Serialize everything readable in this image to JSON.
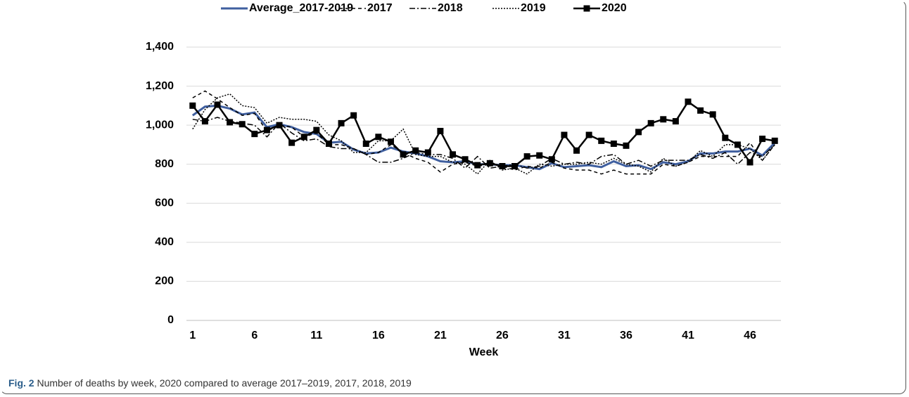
{
  "chart_data": {
    "type": "line",
    "x": [
      1,
      2,
      3,
      4,
      5,
      6,
      7,
      8,
      9,
      10,
      11,
      12,
      13,
      14,
      15,
      16,
      17,
      18,
      19,
      20,
      21,
      22,
      23,
      24,
      25,
      26,
      27,
      28,
      29,
      30,
      31,
      32,
      33,
      34,
      35,
      36,
      37,
      38,
      39,
      40,
      41,
      42,
      43,
      44,
      45,
      46,
      47,
      48
    ],
    "xlim": [
      0.5,
      48.5
    ],
    "xticks": [
      1,
      6,
      11,
      16,
      21,
      26,
      31,
      36,
      41,
      46
    ],
    "xlabel": "Week",
    "ylim": [
      0,
      1400
    ],
    "yticks": [
      0,
      200,
      400,
      600,
      800,
      {
        "value": 1000,
        "label": "1,000"
      },
      {
        "value": 1200,
        "label": "1,200"
      },
      {
        "value": 1400,
        "label": "1,400"
      }
    ],
    "grid": true,
    "legend": "top",
    "series": [
      {
        "name": "Average_2017-2019",
        "color": "#3f5f9f",
        "style": "solid",
        "values": [
          1050,
          1095,
          1100,
          1085,
          1055,
          1065,
          990,
          1005,
          990,
          965,
          955,
          910,
          915,
          875,
          855,
          860,
          885,
          865,
          855,
          840,
          815,
          810,
          815,
          800,
          800,
          795,
          795,
          785,
          775,
          805,
          785,
          790,
          795,
          785,
          815,
          790,
          795,
          775,
          810,
          800,
          815,
          855,
          855,
          865,
          865,
          880,
          845,
          910
        ]
      },
      {
        "name": "2017",
        "color": "#000000",
        "style": "dashed",
        "values": [
          1140,
          1175,
          1135,
          1090,
          1050,
          1060,
          970,
          1000,
          990,
          940,
          960,
          900,
          900,
          880,
          850,
          860,
          900,
          860,
          830,
          810,
          760,
          800,
          810,
          790,
          800,
          790,
          770,
          790,
          780,
          810,
          780,
          770,
          770,
          750,
          770,
          750,
          750,
          750,
          800,
          790,
          810,
          840,
          840,
          840,
          840,
          910,
          820,
          900
        ]
      },
      {
        "name": "2018",
        "color": "#000000",
        "style": "dashdot",
        "values": [
          1030,
          1020,
          1040,
          1020,
          1010,
          1000,
          940,
          1010,
          960,
          920,
          930,
          890,
          880,
          880,
          850,
          810,
          810,
          830,
          860,
          850,
          850,
          830,
          780,
          840,
          780,
          790,
          800,
          780,
          790,
          830,
          800,
          810,
          800,
          840,
          850,
          800,
          820,
          790,
          820,
          820,
          820,
          850,
          830,
          860,
          800,
          860,
          840,
          900
        ]
      },
      {
        "name": "2019",
        "color": "#000000",
        "style": "dotted",
        "values": [
          980,
          1080,
          1140,
          1160,
          1100,
          1090,
          1010,
          1040,
          1030,
          1030,
          1020,
          950,
          920,
          860,
          860,
          920,
          920,
          980,
          850,
          840,
          840,
          810,
          800,
          750,
          820,
          770,
          780,
          750,
          800,
          790,
          800,
          800,
          810,
          800,
          830,
          800,
          790,
          760,
          830,
          790,
          810,
          870,
          840,
          900,
          900,
          880,
          820,
          900
        ]
      },
      {
        "name": "2020",
        "color": "#000000",
        "style": "solid",
        "marker": "square",
        "values": [
          1100,
          1020,
          1105,
          1015,
          1005,
          955,
          975,
          1000,
          910,
          940,
          975,
          905,
          1010,
          1050,
          905,
          940,
          915,
          850,
          870,
          860,
          970,
          850,
          825,
          795,
          805,
          790,
          790,
          840,
          845,
          825,
          950,
          870,
          950,
          920,
          905,
          895,
          965,
          1010,
          1030,
          1020,
          1120,
          1075,
          1055,
          935,
          900,
          810,
          930,
          920
        ]
      }
    ]
  },
  "caption": {
    "label": "Fig. 2",
    "text": "Number of deaths by week, 2020 compared to average 2017–2019, 2017, 2018, 2019"
  }
}
